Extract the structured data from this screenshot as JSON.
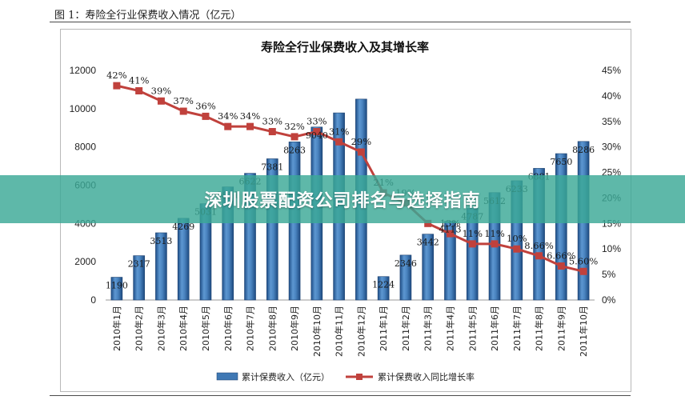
{
  "figure": {
    "caption": "图 1：寿险全行业保费收入情况（亿元）"
  },
  "banner": {
    "text": "深圳股票配资公司排名与选择指南"
  },
  "chart_data": {
    "type": "bar",
    "title": "寿险全行业保费收入及其增长率",
    "categories": [
      "2010年1月",
      "2010年2月",
      "2010年3月",
      "2010年4月",
      "2010年5月",
      "2010年6月",
      "2010年7月",
      "2010年8月",
      "2010年9月",
      "2010年10月",
      "2010年11月",
      "2010年12月",
      "2011年1月",
      "2011年2月",
      "2011年3月",
      "2011年4月",
      "2011年5月",
      "2011年6月",
      "2011年7月",
      "2011年8月",
      "2011年9月",
      "2011年10月"
    ],
    "y_left": {
      "min": 0,
      "max": 12000,
      "ticks": [
        "0",
        "2000",
        "4000",
        "6000",
        "8000",
        "10000",
        "12000"
      ]
    },
    "y_right": {
      "min": 0,
      "max": 45,
      "ticks": [
        "0%",
        "5%",
        "10%",
        "15%",
        "20%",
        "25%",
        "30%",
        "35%",
        "40%",
        "45%"
      ]
    },
    "series": [
      {
        "name": "累计保费收入（亿元）",
        "type": "bar",
        "axis": "left",
        "color": "#3f78b4",
        "values": [
          1190,
          2317,
          3513,
          4269,
          5031,
          5911,
          6622,
          7381,
          8263,
          9040,
          9780,
          10500,
          1224,
          2346,
          3442,
          4113,
          4787,
          5612,
          6233,
          6881,
          7650,
          8286
        ],
        "labels": [
          "1190",
          "2317",
          "3513",
          "4269",
          "5031",
          "5911",
          "6622",
          "7381",
          "8263",
          "9040",
          "",
          "",
          "1224",
          "2346",
          "3442",
          "4113",
          "4787",
          "5612",
          "6233",
          "6881",
          "7650",
          "8286"
        ]
      },
      {
        "name": "累计保费收入同比增长率",
        "type": "line",
        "axis": "right",
        "color": "#c0413c",
        "values": [
          42,
          41,
          39,
          37,
          36,
          34,
          34,
          33,
          32,
          33,
          31,
          29,
          21,
          19,
          15,
          13,
          11,
          11,
          10,
          8.66,
          6.66,
          5.6
        ],
        "labels": [
          "42%",
          "41%",
          "39%",
          "37%",
          "36%",
          "34%",
          "34%",
          "33%",
          "32%",
          "33%",
          "31%",
          "29%",
          "21%",
          "19%",
          "",
          "13%",
          "11%",
          "11%",
          "10%",
          "8.66%",
          "6.66%",
          "5.60%"
        ]
      }
    ],
    "legend_position": "bottom"
  }
}
